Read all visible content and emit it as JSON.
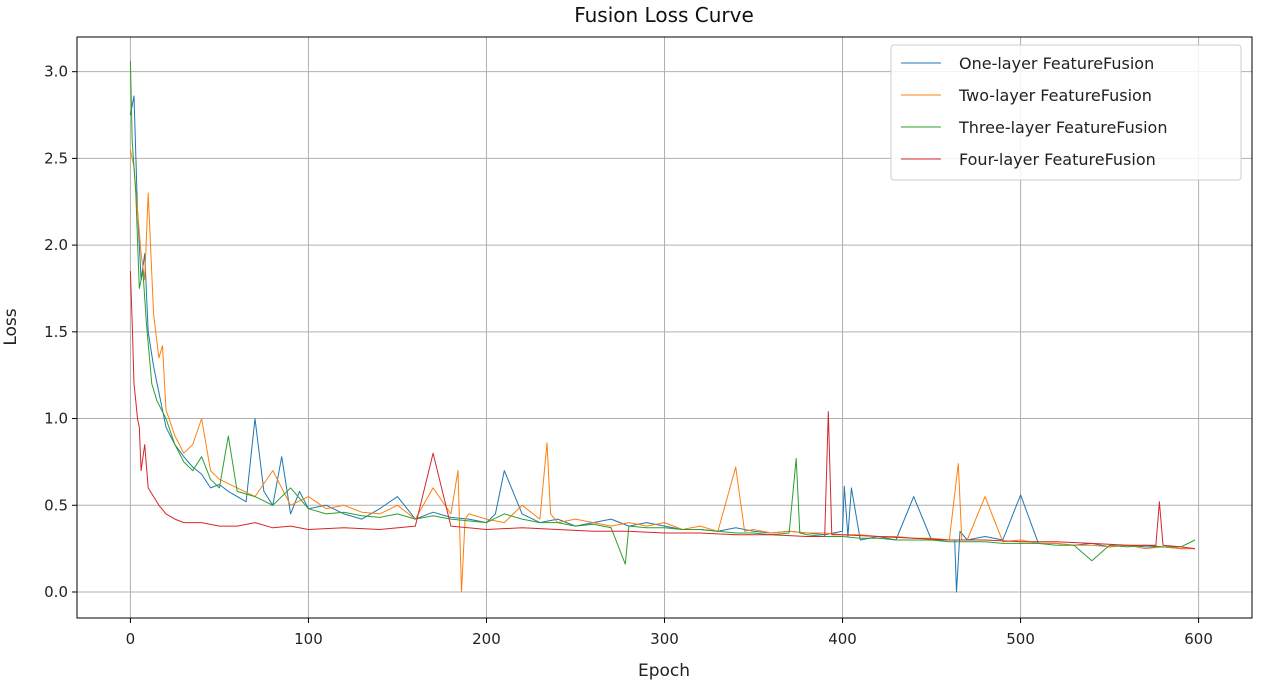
{
  "chart_data": {
    "type": "line",
    "title": "Fusion Loss Curve",
    "xlabel": "Epoch",
    "ylabel": "Loss",
    "xlim": [
      -30,
      630
    ],
    "ylim": [
      -0.15,
      3.2
    ],
    "xticks": [
      0,
      100,
      200,
      300,
      400,
      500,
      600
    ],
    "yticks": [
      0.0,
      0.5,
      1.0,
      1.5,
      2.0,
      2.5,
      3.0
    ],
    "ytick_labels": [
      "0.0",
      "0.5",
      "1.0",
      "1.5",
      "2.0",
      "2.5",
      "3.0"
    ],
    "grid": true,
    "legend_position": "top-right",
    "series": [
      {
        "name": "One-layer FeatureFusion",
        "color": "#1f77b4",
        "x": [
          0,
          2,
          4,
          6,
          8,
          10,
          13,
          16,
          20,
          25,
          30,
          35,
          40,
          45,
          50,
          55,
          60,
          65,
          70,
          75,
          80,
          85,
          90,
          95,
          100,
          110,
          120,
          130,
          140,
          150,
          160,
          170,
          180,
          190,
          200,
          205,
          210,
          220,
          230,
          240,
          250,
          260,
          270,
          280,
          290,
          300,
          310,
          320,
          330,
          340,
          350,
          360,
          370,
          380,
          390,
          400,
          401,
          403,
          405,
          410,
          420,
          430,
          440,
          450,
          460,
          463,
          464,
          466,
          470,
          480,
          490,
          500,
          510,
          520,
          530,
          540,
          550,
          560,
          570,
          580,
          590,
          598
        ],
        "y": [
          2.75,
          2.86,
          2.2,
          1.8,
          1.95,
          1.5,
          1.3,
          1.15,
          0.95,
          0.85,
          0.78,
          0.72,
          0.68,
          0.6,
          0.62,
          0.58,
          0.55,
          0.52,
          1.0,
          0.58,
          0.5,
          0.78,
          0.45,
          0.58,
          0.48,
          0.5,
          0.45,
          0.42,
          0.48,
          0.55,
          0.42,
          0.46,
          0.43,
          0.42,
          0.4,
          0.45,
          0.7,
          0.45,
          0.4,
          0.42,
          0.38,
          0.4,
          0.42,
          0.38,
          0.4,
          0.38,
          0.36,
          0.36,
          0.35,
          0.37,
          0.35,
          0.34,
          0.35,
          0.34,
          0.33,
          0.35,
          0.61,
          0.32,
          0.6,
          0.3,
          0.32,
          0.3,
          0.55,
          0.3,
          0.3,
          0.3,
          0.0,
          0.35,
          0.3,
          0.32,
          0.3,
          0.56,
          0.28,
          0.28,
          0.27,
          0.28,
          0.26,
          0.27,
          0.26,
          0.26,
          0.25,
          0.25
        ]
      },
      {
        "name": "Two-layer FeatureFusion",
        "color": "#ff7f0e",
        "x": [
          0,
          2,
          4,
          6,
          8,
          10,
          13,
          16,
          18,
          20,
          25,
          30,
          35,
          40,
          45,
          50,
          60,
          70,
          80,
          90,
          100,
          110,
          120,
          130,
          140,
          150,
          160,
          170,
          180,
          184,
          186,
          188,
          190,
          200,
          210,
          220,
          230,
          234,
          236,
          240,
          250,
          260,
          270,
          280,
          290,
          300,
          310,
          320,
          330,
          340,
          345,
          350,
          360,
          370,
          380,
          390,
          400,
          410,
          420,
          430,
          440,
          450,
          460,
          465,
          467,
          470,
          480,
          490,
          500,
          510,
          520,
          530,
          540,
          550,
          560,
          570,
          580,
          590,
          598
        ],
        "y": [
          2.55,
          2.45,
          2.2,
          1.95,
          1.8,
          2.3,
          1.6,
          1.35,
          1.42,
          1.05,
          0.9,
          0.8,
          0.85,
          1.0,
          0.7,
          0.65,
          0.6,
          0.55,
          0.7,
          0.5,
          0.55,
          0.48,
          0.5,
          0.46,
          0.45,
          0.5,
          0.42,
          0.6,
          0.45,
          0.7,
          0.0,
          0.42,
          0.45,
          0.42,
          0.4,
          0.5,
          0.42,
          0.86,
          0.45,
          0.4,
          0.42,
          0.4,
          0.38,
          0.4,
          0.38,
          0.4,
          0.36,
          0.38,
          0.35,
          0.72,
          0.35,
          0.36,
          0.34,
          0.35,
          0.34,
          0.34,
          0.33,
          0.33,
          0.32,
          0.32,
          0.31,
          0.31,
          0.3,
          0.74,
          0.3,
          0.3,
          0.55,
          0.29,
          0.3,
          0.28,
          0.28,
          0.27,
          0.27,
          0.26,
          0.27,
          0.25,
          0.26,
          0.25,
          0.25
        ]
      },
      {
        "name": "Three-layer FeatureFusion",
        "color": "#2ca02c",
        "x": [
          0,
          1,
          3,
          5,
          7,
          9,
          12,
          15,
          20,
          25,
          30,
          35,
          40,
          45,
          50,
          55,
          60,
          70,
          80,
          90,
          100,
          110,
          120,
          130,
          140,
          150,
          160,
          170,
          180,
          190,
          200,
          210,
          220,
          230,
          240,
          250,
          260,
          270,
          278,
          280,
          290,
          300,
          310,
          320,
          330,
          340,
          350,
          360,
          370,
          374,
          376,
          380,
          390,
          400,
          410,
          420,
          430,
          440,
          450,
          460,
          470,
          480,
          490,
          500,
          510,
          520,
          530,
          540,
          550,
          560,
          570,
          580,
          590,
          598
        ],
        "y": [
          3.06,
          2.6,
          2.3,
          1.75,
          1.85,
          1.55,
          1.2,
          1.1,
          1.0,
          0.85,
          0.75,
          0.7,
          0.78,
          0.65,
          0.6,
          0.9,
          0.58,
          0.55,
          0.5,
          0.6,
          0.48,
          0.45,
          0.46,
          0.44,
          0.43,
          0.45,
          0.42,
          0.44,
          0.42,
          0.41,
          0.4,
          0.45,
          0.42,
          0.4,
          0.4,
          0.38,
          0.39,
          0.37,
          0.16,
          0.38,
          0.37,
          0.37,
          0.36,
          0.36,
          0.35,
          0.34,
          0.34,
          0.33,
          0.34,
          0.77,
          0.34,
          0.33,
          0.32,
          0.32,
          0.31,
          0.31,
          0.3,
          0.3,
          0.3,
          0.29,
          0.29,
          0.29,
          0.28,
          0.28,
          0.28,
          0.27,
          0.27,
          0.18,
          0.27,
          0.26,
          0.27,
          0.26,
          0.26,
          0.3
        ]
      },
      {
        "name": "Four-layer FeatureFusion",
        "color": "#d62728",
        "x": [
          0,
          1,
          2,
          3,
          4,
          5,
          6,
          8,
          10,
          13,
          16,
          20,
          25,
          30,
          40,
          50,
          60,
          70,
          80,
          90,
          100,
          120,
          140,
          160,
          170,
          180,
          200,
          220,
          240,
          260,
          280,
          300,
          320,
          340,
          360,
          380,
          390,
          392,
          394,
          400,
          420,
          440,
          460,
          480,
          500,
          520,
          540,
          560,
          570,
          576,
          578,
          580,
          590,
          598
        ],
        "y": [
          1.85,
          1.55,
          1.2,
          1.1,
          1.0,
          0.95,
          0.7,
          0.85,
          0.6,
          0.55,
          0.5,
          0.45,
          0.42,
          0.4,
          0.4,
          0.38,
          0.38,
          0.4,
          0.37,
          0.38,
          0.36,
          0.37,
          0.36,
          0.38,
          0.8,
          0.38,
          0.36,
          0.37,
          0.36,
          0.35,
          0.35,
          0.34,
          0.34,
          0.33,
          0.33,
          0.32,
          0.32,
          1.04,
          0.33,
          0.33,
          0.32,
          0.31,
          0.3,
          0.3,
          0.29,
          0.29,
          0.28,
          0.27,
          0.27,
          0.27,
          0.52,
          0.27,
          0.26,
          0.25
        ]
      }
    ]
  }
}
